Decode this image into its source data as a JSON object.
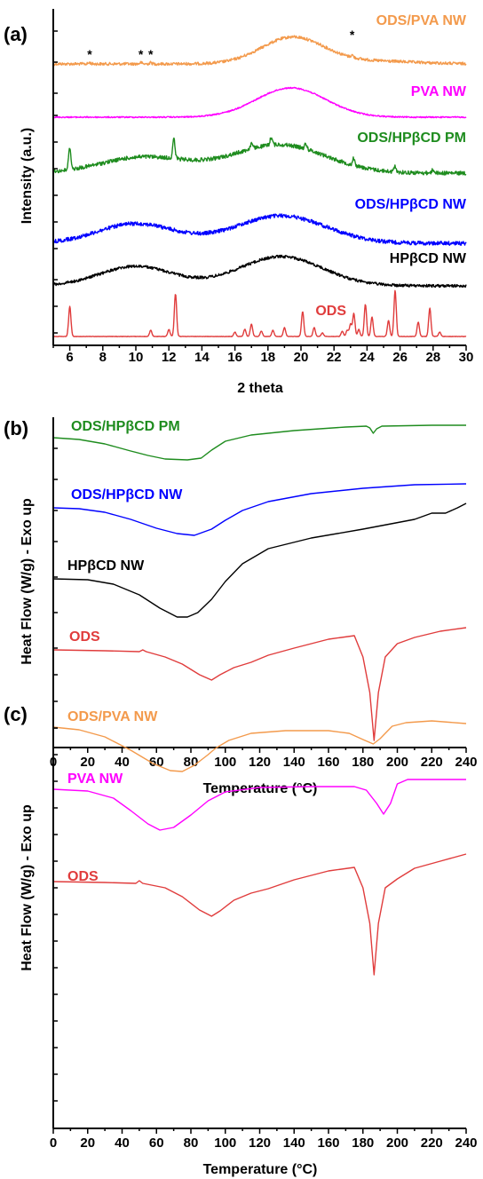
{
  "chart_data": [
    {
      "panel": "(a)",
      "type": "line",
      "xlabel": "2 theta",
      "ylabel": "Intensity (a.u.)",
      "xlim": [
        5,
        30
      ],
      "xticks": [
        "6",
        "8",
        "10",
        "12",
        "14",
        "16",
        "18",
        "20",
        "22",
        "24",
        "26",
        "28",
        "30"
      ],
      "grid": false,
      "series": [
        {
          "name": "ODS/PVA NW",
          "color": "#F39A4C",
          "noise": 1.6,
          "baseline": 72,
          "components": [
            [
              19.5,
              1.9,
              30
            ],
            [
              24.5,
              2.5,
              3
            ]
          ],
          "peaks": [
            [
              7.2,
              1.5
            ],
            [
              10.3,
              1.5
            ],
            [
              10.9,
              1.5
            ],
            [
              23.1,
              2.5
            ]
          ],
          "marked_peaks": [
            7.2,
            10.3,
            10.9,
            23.1
          ]
        },
        {
          "name": "PVA NW",
          "color": "#FF00FF",
          "noise": 0.7,
          "baseline": 132,
          "components": [
            [
              19.4,
              2.1,
              33
            ]
          ],
          "peaks": []
        },
        {
          "name": "ODS/HPβCD PM",
          "color": "#1E8C1E",
          "noise": 2.2,
          "baseline": 195,
          "components": [
            [
              10.5,
              2.6,
              18
            ],
            [
              18.7,
              2.8,
              32
            ]
          ],
          "peaks": [
            [
              6.0,
              25
            ],
            [
              12.3,
              22
            ],
            [
              17.0,
              6
            ],
            [
              18.2,
              9
            ],
            [
              20.3,
              6
            ],
            [
              23.2,
              8
            ],
            [
              25.7,
              6
            ],
            [
              28.0,
              4
            ]
          ]
        },
        {
          "name": "ODS/HPβCD NW",
          "color": "#0000FF",
          "noise": 2.2,
          "baseline": 274,
          "components": [
            [
              10.0,
              2.3,
              22
            ],
            [
              18.8,
              2.7,
              31
            ]
          ],
          "peaks": []
        },
        {
          "name": "HPβCD NW",
          "color": "#000000",
          "noise": 1.6,
          "baseline": 322,
          "components": [
            [
              10.0,
              2.2,
              22
            ],
            [
              18.8,
              2.5,
              33
            ]
          ],
          "peaks": []
        },
        {
          "name": "ODS",
          "color": "#E03C3C",
          "noise": 0.25,
          "baseline": 379,
          "components": [],
          "peaks": [
            [
              6.0,
              34
            ],
            [
              10.9,
              7
            ],
            [
              12.0,
              8
            ],
            [
              12.4,
              48
            ],
            [
              16.0,
              5
            ],
            [
              16.6,
              8
            ],
            [
              17.0,
              14
            ],
            [
              17.6,
              6
            ],
            [
              18.3,
              7
            ],
            [
              19.0,
              10
            ],
            [
              20.1,
              28
            ],
            [
              20.8,
              10
            ],
            [
              21.3,
              4
            ],
            [
              22.5,
              6
            ],
            [
              22.8,
              7
            ],
            [
              23.0,
              14
            ],
            [
              23.2,
              26
            ],
            [
              23.5,
              8
            ],
            [
              23.9,
              36
            ],
            [
              24.3,
              22
            ],
            [
              25.3,
              18
            ],
            [
              25.7,
              52
            ],
            [
              27.1,
              16
            ],
            [
              27.8,
              32
            ],
            [
              28.4,
              5
            ]
          ]
        }
      ]
    },
    {
      "panel": "(b)",
      "type": "line",
      "xlabel": "Temperature (°C)",
      "ylabel": "Heat Flow (W/g) - Exo up",
      "xlim": [
        0,
        240
      ],
      "xticks": [
        "0",
        "20",
        "40",
        "60",
        "80",
        "100",
        "120",
        "140",
        "160",
        "180",
        "200",
        "220",
        "240"
      ],
      "grid": false,
      "series": [
        {
          "name": "ODS/HPβCD PM",
          "color": "#1E8C1E",
          "points": [
            [
              0,
              493
            ],
            [
              15,
              495
            ],
            [
              30,
              500
            ],
            [
              45,
              508
            ],
            [
              55,
              513
            ],
            [
              65,
              517
            ],
            [
              78,
              518
            ],
            [
              86,
              516
            ],
            [
              92,
              507
            ],
            [
              100,
              497
            ],
            [
              115,
              490
            ],
            [
              140,
              485
            ],
            [
              170,
              481
            ],
            [
              182,
              480
            ],
            [
              184,
              482
            ],
            [
              186,
              488
            ],
            [
              188,
              483
            ],
            [
              191,
              480
            ],
            [
              220,
              479
            ],
            [
              240,
              479
            ]
          ]
        },
        {
          "name": "ODS/HPβCD NW",
          "color": "#0000FF",
          "points": [
            [
              0,
              572
            ],
            [
              15,
              573
            ],
            [
              30,
              577
            ],
            [
              45,
              585
            ],
            [
              60,
              595
            ],
            [
              72,
              601
            ],
            [
              82,
              603
            ],
            [
              92,
              596
            ],
            [
              100,
              586
            ],
            [
              110,
              575
            ],
            [
              125,
              565
            ],
            [
              150,
              556
            ],
            [
              180,
              550
            ],
            [
              210,
              546
            ],
            [
              240,
              545
            ]
          ]
        },
        {
          "name": "HPβCD  NW",
          "color": "#000000",
          "points": [
            [
              0,
              652
            ],
            [
              20,
              653
            ],
            [
              35,
              658
            ],
            [
              50,
              670
            ],
            [
              62,
              685
            ],
            [
              72,
              695
            ],
            [
              78,
              695
            ],
            [
              84,
              690
            ],
            [
              92,
              675
            ],
            [
              100,
              655
            ],
            [
              110,
              635
            ],
            [
              125,
              618
            ],
            [
              150,
              606
            ],
            [
              180,
              596
            ],
            [
              210,
              585
            ],
            [
              220,
              578
            ],
            [
              228,
              578
            ],
            [
              235,
              572
            ],
            [
              240,
              567
            ]
          ]
        },
        {
          "name": "ODS",
          "color": "#E03C3C",
          "points": [
            [
              0,
              732
            ],
            [
              30,
              733
            ],
            [
              50,
              734
            ],
            [
              52,
              732
            ],
            [
              54,
              734
            ],
            [
              65,
              740
            ],
            [
              75,
              748
            ],
            [
              85,
              760
            ],
            [
              92,
              766
            ],
            [
              97,
              760
            ],
            [
              105,
              752
            ],
            [
              115,
              746
            ],
            [
              125,
              738
            ],
            [
              140,
              730
            ],
            [
              160,
              720
            ],
            [
              175,
              716
            ],
            [
              180,
              740
            ],
            [
              184,
              780
            ],
            [
              186.5,
              834
            ],
            [
              189,
              780
            ],
            [
              193,
              740
            ],
            [
              200,
              725
            ],
            [
              210,
              718
            ],
            [
              225,
              711
            ],
            [
              240,
              707
            ]
          ]
        }
      ]
    },
    {
      "panel": "(c)",
      "type": "line",
      "xlabel": "Temperature (°C)",
      "ylabel": "Heat Flow (W/g) - Exo up",
      "xlim": [
        0,
        240
      ],
      "xticks": [
        "0",
        "20",
        "40",
        "60",
        "80",
        "100",
        "120",
        "140",
        "160",
        "180",
        "200",
        "220",
        "240"
      ],
      "grid": false,
      "series": [
        {
          "name": "ODS/PVA NW",
          "color": "#F39A4C",
          "points": [
            [
              0,
              819
            ],
            [
              15,
              822
            ],
            [
              30,
              830
            ],
            [
              45,
              845
            ],
            [
              58,
              860
            ],
            [
              68,
              868
            ],
            [
              75,
              869
            ],
            [
              82,
              862
            ],
            [
              90,
              850
            ],
            [
              93,
              845
            ],
            [
              95,
              842
            ],
            [
              102,
              834
            ],
            [
              115,
              826
            ],
            [
              135,
              823
            ],
            [
              160,
              823
            ],
            [
              172,
              826
            ],
            [
              180,
              833
            ],
            [
              186,
              838
            ],
            [
              190,
              832
            ],
            [
              197,
              818
            ],
            [
              205,
              814
            ],
            [
              220,
              812
            ],
            [
              240,
              815
            ]
          ]
        },
        {
          "name": "PVA NW",
          "color": "#FF00FF",
          "points": [
            [
              0,
              889
            ],
            [
              20,
              891
            ],
            [
              35,
              899
            ],
            [
              45,
              913
            ],
            [
              55,
              928
            ],
            [
              62,
              935
            ],
            [
              70,
              932
            ],
            [
              80,
              918
            ],
            [
              90,
              902
            ],
            [
              100,
              892
            ],
            [
              120,
              887
            ],
            [
              150,
              886
            ],
            [
              175,
              886
            ],
            [
              182,
              890
            ],
            [
              188,
              905
            ],
            [
              192,
              917
            ],
            [
              196,
              905
            ],
            [
              200,
              883
            ],
            [
              206,
              878
            ],
            [
              240,
              878
            ]
          ]
        },
        {
          "name": "ODS",
          "color": "#E03C3C",
          "points": [
            [
              0,
              993
            ],
            [
              30,
              994
            ],
            [
              48,
              995
            ],
            [
              50,
              992
            ],
            [
              52,
              995
            ],
            [
              65,
              1000
            ],
            [
              75,
              1010
            ],
            [
              85,
              1025
            ],
            [
              92,
              1032
            ],
            [
              97,
              1026
            ],
            [
              105,
              1014
            ],
            [
              115,
              1006
            ],
            [
              125,
              1001
            ],
            [
              140,
              991
            ],
            [
              160,
              981
            ],
            [
              175,
              977
            ],
            [
              180,
              1000
            ],
            [
              184,
              1040
            ],
            [
              186.5,
              1098
            ],
            [
              189,
              1040
            ],
            [
              193,
              1000
            ],
            [
              200,
              990
            ],
            [
              210,
              978
            ],
            [
              225,
              970
            ],
            [
              240,
              962
            ]
          ]
        }
      ]
    }
  ]
}
